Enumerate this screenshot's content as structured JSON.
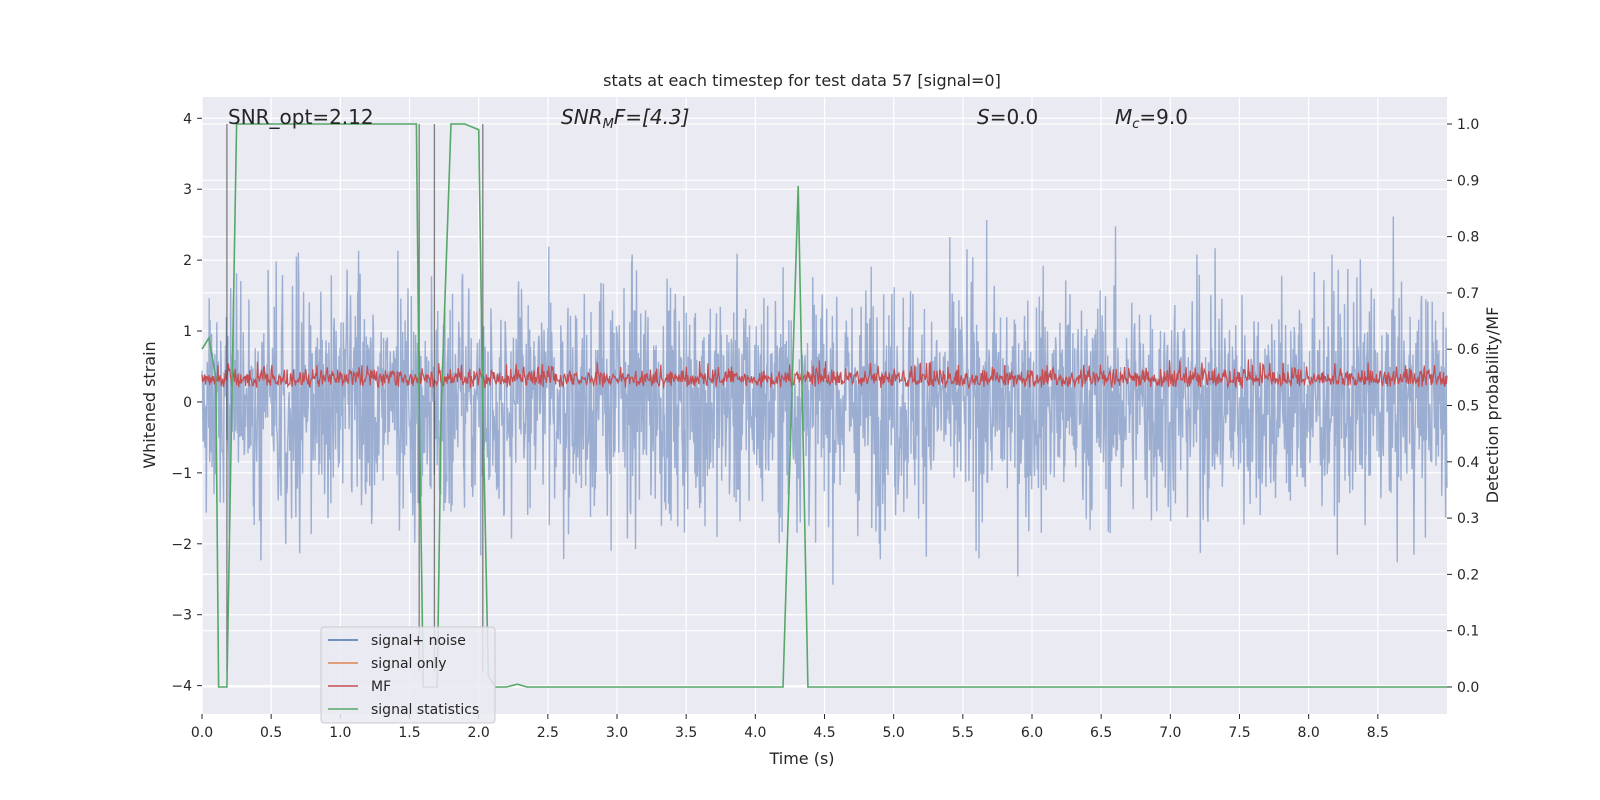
{
  "chart_data": {
    "type": "line",
    "title": "stats at each timestep for test data 57 [signal=0]",
    "xlabel": "Time (s)",
    "ylabel": "Whitened strain",
    "ylabel_right": "Detection probability/MF",
    "xlim": [
      0.0,
      9.0
    ],
    "ylim": [
      -4.4,
      4.3
    ],
    "ylim_right": [
      -0.048,
      1.048
    ],
    "x_ticks": [
      0.0,
      0.5,
      1.0,
      1.5,
      2.0,
      2.5,
      3.0,
      3.5,
      4.0,
      4.5,
      5.0,
      5.5,
      6.0,
      6.5,
      7.0,
      7.5,
      8.0,
      8.5
    ],
    "x_tick_labels": [
      "0.0",
      "0.5",
      "1.0",
      "1.5",
      "2.0",
      "2.5",
      "3.0",
      "3.5",
      "4.0",
      "4.5",
      "5.0",
      "5.5",
      "6.0",
      "6.5",
      "7.0",
      "7.5",
      "8.0",
      "8.5"
    ],
    "y_ticks": [
      -4,
      -3,
      -2,
      -1,
      0,
      1,
      2,
      3,
      4
    ],
    "y_tick_labels": [
      "−4",
      "−3",
      "−2",
      "−1",
      "0",
      "1",
      "2",
      "3",
      "4"
    ],
    "y_right_ticks": [
      0.0,
      0.1,
      0.2,
      0.3,
      0.4,
      0.5,
      0.6,
      0.7,
      0.8,
      0.9,
      1.0
    ],
    "y_right_tick_labels": [
      "0.0",
      "0.1",
      "0.2",
      "0.3",
      "0.4",
      "0.5",
      "0.6",
      "0.7",
      "0.8",
      "0.9",
      "1.0"
    ],
    "annotations": {
      "snr_opt": "SNR_opt=2.12",
      "snr_mf_main": "SNR",
      "snr_mf_sub": "M",
      "snr_mf_rest": "F=[4.3]",
      "s_main": "S",
      "s_rest": "=0.0",
      "mc_main": "M",
      "mc_sub": "c",
      "mc_rest": "=9.0"
    },
    "legend": {
      "position": "lower-left",
      "entries": [
        {
          "label": "signal+ noise",
          "color": "#4c72b0"
        },
        {
          "label": "signal only",
          "color": "#dd8452"
        },
        {
          "label": "MF",
          "color": "#c44e52"
        },
        {
          "label": "signal statistics",
          "color": "#55a868"
        }
      ]
    },
    "series": [
      {
        "name": "signal+ noise",
        "axis": "left",
        "color": "#4c72b0",
        "description_values": "whitened strain noise, amplitude roughly within [-3.9, 3.3]"
      },
      {
        "name": "MF",
        "axis": "right",
        "color": "#c44e52",
        "description_values": "matched-filter output fluctuating between ~0.5 and ~0.6"
      },
      {
        "name": "signal statistics",
        "axis": "right",
        "color": "#55a868",
        "x": [
          0.0,
          0.05,
          0.1,
          0.12,
          0.18,
          0.25,
          0.28,
          1.55,
          1.57,
          1.6,
          1.62,
          1.7,
          1.73,
          1.8,
          1.9,
          2.0,
          2.03,
          2.07,
          2.12,
          2.2,
          2.28,
          2.35,
          2.5,
          3.0,
          4.0,
          4.2,
          4.31,
          4.38,
          4.45,
          9.0
        ],
        "y": [
          0.6,
          0.62,
          0.55,
          0.0,
          0.0,
          1.0,
          1.0,
          1.0,
          0.5,
          0.0,
          0.0,
          0.0,
          0.5,
          1.0,
          1.0,
          0.99,
          0.5,
          0.02,
          0.0,
          0.0,
          0.005,
          0.0,
          0.0,
          0.0,
          0.0,
          0.0,
          0.89,
          0.0,
          0.0,
          0.0
        ]
      }
    ]
  }
}
